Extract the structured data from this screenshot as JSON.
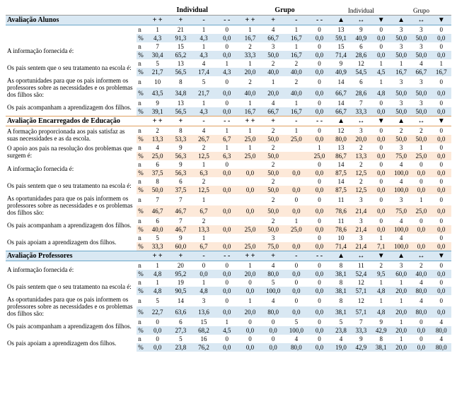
{
  "headers": {
    "group1": "Individual",
    "group2": "Grupo",
    "group3": "Individual",
    "group4": "Grupo",
    "c1": "+ +",
    "c2": "+",
    "c3": "-",
    "c4": "- -",
    "c5": "+ +",
    "c6": "+",
    "c7": "-",
    "c8": "- -",
    "c9": "▲",
    "c10": "↔",
    "c11": "▼",
    "c12": "▲",
    "c13": "↔",
    "c14": "▼"
  },
  "sections": [
    {
      "title": "Avaliação Alunos",
      "shade": "b",
      "titleRowShade": true,
      "rows": [
        {
          "label": "",
          "n": [
            "1",
            "21",
            "1",
            "0",
            "1",
            "4",
            "1",
            "0",
            "13",
            "9",
            "0",
            "3",
            "3",
            "0"
          ],
          "p": [
            "4,3",
            "91,3",
            "4,3",
            "0,0",
            "16,7",
            "66,7",
            "16,7",
            "0,0",
            "59,1",
            "40,9",
            "0,0",
            "50,0",
            "50,0",
            "0,0"
          ]
        },
        {
          "label": "A informação fornecida é:",
          "n": [
            "7",
            "15",
            "1",
            "0",
            "2",
            "3",
            "1",
            "0",
            "15",
            "6",
            "0",
            "3",
            "3",
            "0"
          ],
          "p": [
            "30,4",
            "65,2",
            "4,3",
            "0,0",
            "33,3",
            "50,0",
            "16,7",
            "0,0",
            "71,4",
            "28,6",
            "0,0",
            "50,0",
            "50,0",
            "0,0"
          ]
        },
        {
          "label": "Os pais sentem que o seu tratamento na escola é:",
          "n": [
            "5",
            "13",
            "4",
            "1",
            "1",
            "2",
            "2",
            "0",
            "9",
            "12",
            "1",
            "1",
            "4",
            "1"
          ],
          "p": [
            "21,7",
            "56,5",
            "17,4",
            "4,3",
            "20,0",
            "40,0",
            "40,0",
            "0,0",
            "40,9",
            "54,5",
            "4,5",
            "16,7",
            "66,7",
            "16,7"
          ]
        },
        {
          "label": "As oportunidades para que os pais informem os professores sobre as necessidades e os problemas dos filhos são:",
          "n": [
            "10",
            "8",
            "5",
            "0",
            "2",
            "1",
            "2",
            "0",
            "14",
            "6",
            "1",
            "3",
            "3",
            "0"
          ],
          "p": [
            "43,5",
            "34,8",
            "21,7",
            "0,0",
            "40,0",
            "20,0",
            "40,0",
            "0,0",
            "66,7",
            "28,6",
            "4,8",
            "50,0",
            "50,0",
            "0,0"
          ]
        },
        {
          "label": "Os pais acompanham a aprendizagem dos filhos.",
          "n": [
            "9",
            "13",
            "1",
            "0",
            "1",
            "4",
            "1",
            "0",
            "14",
            "7",
            "0",
            "3",
            "3",
            "0"
          ],
          "p": [
            "39,1",
            "56,5",
            "4,3",
            "0,0",
            "16,7",
            "66,7",
            "16,7",
            "0,0",
            "66,7",
            "33,3",
            "0,0",
            "50,0",
            "50,0",
            "0,0"
          ]
        },
        {
          "label": "Os pais apoiam a aprendizagem dos filhos.",
          "n": null,
          "p": null
        }
      ]
    },
    {
      "title": "Avaliação Encarregados de Educação",
      "shade": "o",
      "titleRowShade": false,
      "repeatHeader": true,
      "rows": [
        {
          "label": "A formação proporcionada aos pais satisfaz as suas necessidades e as da escola.",
          "n": [
            "2",
            "8",
            "4",
            "1",
            "1",
            "2",
            "1",
            "0",
            "12",
            "3",
            "0",
            "2",
            "2",
            "0"
          ],
          "p": [
            "13,3",
            "53,3",
            "26,7",
            "6,7",
            "25,0",
            "50,0",
            "25,0",
            "0,0",
            "80,0",
            "20,0",
            "0,0",
            "50,0",
            "50,0",
            "0,0"
          ]
        },
        {
          "label": "O apoio aos pais na resolução dos problemas que surgem é:",
          "n": [
            "4",
            "9",
            "2",
            "1",
            "1",
            "2",
            "",
            "1",
            "13",
            "2",
            "0",
            "3",
            "1",
            "0"
          ],
          "p": [
            "25,0",
            "56,3",
            "12,5",
            "6,3",
            "25,0",
            "50,0",
            "",
            "25,0",
            "86,7",
            "13,3",
            "0,0",
            "75,0",
            "25,0",
            "0,0"
          ]
        },
        {
          "label": "A informação fornecida é:",
          "n": [
            "6",
            "9",
            "1",
            "0",
            "",
            "2",
            "",
            "0",
            "14",
            "2",
            "0",
            "4",
            "0",
            "0"
          ],
          "p": [
            "37,5",
            "56,3",
            "6,3",
            "0,0",
            "0,0",
            "50,0",
            "0,0",
            "0,0",
            "87,5",
            "12,5",
            "0,0",
            "100,0",
            "0,0",
            "0,0"
          ]
        },
        {
          "label": "Os pais sentem que o seu tratamento na escola é:",
          "n": [
            "8",
            "6",
            "2",
            "",
            "",
            "2",
            "",
            "0",
            "14",
            "2",
            "0",
            "4",
            "0",
            "0"
          ],
          "p": [
            "50,0",
            "37,5",
            "12,5",
            "0,0",
            "0,0",
            "50,0",
            "0,0",
            "0,0",
            "87,5",
            "12,5",
            "0,0",
            "100,0",
            "0,0",
            "0,0"
          ]
        },
        {
          "label": "As oportunidades para que os pais informem os professores sobre as necessidades e os problemas dos filhos são:",
          "n": [
            "7",
            "7",
            "1",
            "",
            "",
            "2",
            "0",
            "0",
            "11",
            "3",
            "0",
            "3",
            "1",
            "0"
          ],
          "p": [
            "46,7",
            "46,7",
            "6,7",
            "0,0",
            "0,0",
            "50,0",
            "0,0",
            "0,0",
            "78,6",
            "21,4",
            "0,0",
            "75,0",
            "25,0",
            "0,0"
          ]
        },
        {
          "label": "Os pais acompanham a aprendizagem dos filhos.",
          "n": [
            "6",
            "7",
            "2",
            "",
            "",
            "2",
            "1",
            "0",
            "11",
            "3",
            "0",
            "4",
            "0",
            "0"
          ],
          "p": [
            "40,0",
            "46,7",
            "13,3",
            "0,0",
            "25,0",
            "50,0",
            "25,0",
            "0,0",
            "78,6",
            "21,4",
            "0,0",
            "100,0",
            "0,0",
            "0,0"
          ]
        },
        {
          "label": "Os pais apoiam a aprendizagem dos filhos.",
          "n": [
            "5",
            "9",
            "1",
            "",
            "",
            "3",
            "",
            "0",
            "10",
            "3",
            "1",
            "4",
            "",
            "0"
          ],
          "p": [
            "33,3",
            "60,0",
            "6,7",
            "0,0",
            "25,0",
            "75,0",
            "0,0",
            "0,0",
            "71,4",
            "21,4",
            "7,1",
            "100,0",
            "0,0",
            "0,0"
          ]
        }
      ]
    },
    {
      "title": "Avaliação Professores",
      "shade": "b",
      "titleRowShade": true,
      "repeatHeader": true,
      "rows": [
        {
          "label": "A informação fornecida é:",
          "n": [
            "1",
            "20",
            "0",
            "0",
            "1",
            "4",
            "0",
            "0",
            "8",
            "11",
            "2",
            "3",
            "2",
            "0"
          ],
          "p": [
            "4,8",
            "95,2",
            "0,0",
            "0,0",
            "20,0",
            "80,0",
            "0,0",
            "0,0",
            "38,1",
            "52,4",
            "9,5",
            "60,0",
            "40,0",
            "0,0"
          ]
        },
        {
          "label": "Os pais sentem que o seu tratamento na escola é:",
          "n": [
            "1",
            "19",
            "1",
            "0",
            "0",
            "5",
            "0",
            "0",
            "8",
            "12",
            "1",
            "1",
            "4",
            "0"
          ],
          "p": [
            "4,8",
            "90,5",
            "4,8",
            "0,0",
            "0,0",
            "100,0",
            "0,0",
            "0,0",
            "38,1",
            "57,1",
            "4,8",
            "20,0",
            "80,0",
            "0,0"
          ]
        },
        {
          "label": "As oportunidades para que os pais informem os professores sobre as necessidades e os problemas dos filhos são:",
          "n": [
            "5",
            "14",
            "3",
            "0",
            "1",
            "4",
            "0",
            "0",
            "8",
            "12",
            "1",
            "1",
            "4",
            "0"
          ],
          "p": [
            "22,7",
            "63,6",
            "13,6",
            "0,0",
            "20,0",
            "80,0",
            "0,0",
            "0,0",
            "38,1",
            "57,1",
            "4,8",
            "20,0",
            "80,0",
            "0,0"
          ]
        },
        {
          "label": "Os pais acompanham a aprendizagem dos filhos.",
          "n": [
            "0",
            "6",
            "15",
            "1",
            "0",
            "0",
            "5",
            "0",
            "5",
            "7",
            "9",
            "1",
            "0",
            "4"
          ],
          "p": [
            "0,0",
            "27,3",
            "68,2",
            "4,5",
            "0,0",
            "0,0",
            "100,0",
            "0,0",
            "23,8",
            "33,3",
            "42,9",
            "20,0",
            "0,0",
            "80,0"
          ]
        },
        {
          "label": "Os pais apoiam a aprendizagem dos filhos.",
          "n": [
            "0",
            "5",
            "16",
            "0",
            "0",
            "0",
            "4",
            "0",
            "4",
            "9",
            "8",
            "1",
            "0",
            "4"
          ],
          "p": [
            "0,0",
            "23,8",
            "76,2",
            "0,0",
            "0,0",
            "0,0",
            "80,0",
            "0,0",
            "19,0",
            "42,9",
            "38,1",
            "20,0",
            "0,0",
            "80,0"
          ]
        }
      ]
    }
  ]
}
